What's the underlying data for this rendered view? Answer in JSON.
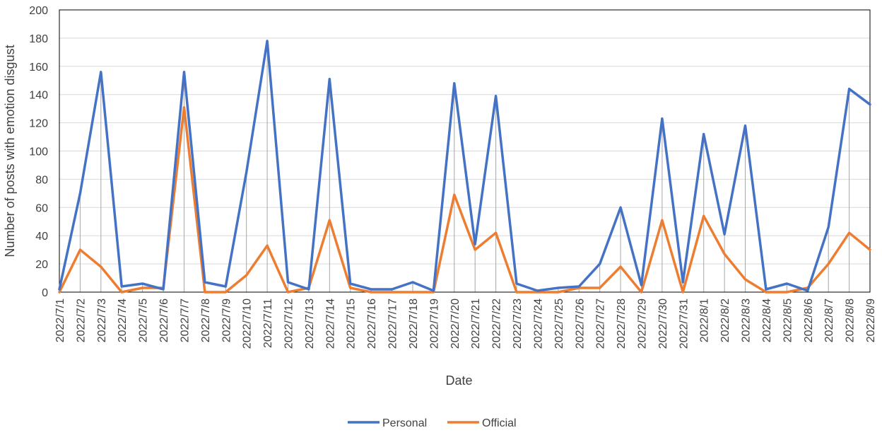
{
  "chart_data": {
    "type": "line",
    "title": "",
    "xlabel": "Date",
    "ylabel": "Number of posts with emotion disgust",
    "ylim": [
      0,
      200
    ],
    "yticks": [
      0,
      20,
      40,
      60,
      80,
      100,
      120,
      140,
      160,
      180,
      200
    ],
    "grid": true,
    "legend_position": "bottom",
    "categories": [
      "2022/7/1",
      "2022/7/2",
      "2022/7/3",
      "2022/7/4",
      "2022/7/5",
      "2022/7/6",
      "2022/7/7",
      "2022/7/8",
      "2022/7/9",
      "2022/7/10",
      "2022/7/11",
      "2022/7/12",
      "2022/7/13",
      "2022/7/14",
      "2022/7/15",
      "2022/7/16",
      "2022/7/17",
      "2022/7/18",
      "2022/7/19",
      "2022/7/20",
      "2022/7/21",
      "2022/7/22",
      "2022/7/23",
      "2022/7/24",
      "2022/7/25",
      "2022/7/26",
      "2022/7/27",
      "2022/7/28",
      "2022/7/29",
      "2022/7/30",
      "2022/7/31",
      "2022/8/1",
      "2022/8/2",
      "2022/8/3",
      "2022/8/4",
      "2022/8/5",
      "2022/8/6",
      "2022/8/7",
      "2022/8/8",
      "2022/8/9"
    ],
    "series": [
      {
        "name": "Personal",
        "color": "#4472C4",
        "values": [
          2,
          70,
          156,
          4,
          6,
          2,
          156,
          7,
          4,
          85,
          178,
          7,
          2,
          151,
          6,
          2,
          2,
          7,
          1,
          148,
          34,
          139,
          6,
          1,
          3,
          4,
          20,
          60,
          5,
          123,
          7,
          112,
          41,
          118,
          2,
          6,
          1,
          46,
          144,
          133
        ]
      },
      {
        "name": "Official",
        "color": "#ED7D31",
        "values": [
          0,
          30,
          18,
          0,
          3,
          3,
          131,
          0,
          0,
          12,
          33,
          0,
          3,
          51,
          3,
          0,
          0,
          0,
          0,
          69,
          30,
          42,
          0,
          0,
          0,
          3,
          3,
          18,
          0,
          51,
          0,
          54,
          27,
          9,
          0,
          0,
          3,
          20,
          42,
          30
        ]
      }
    ]
  }
}
